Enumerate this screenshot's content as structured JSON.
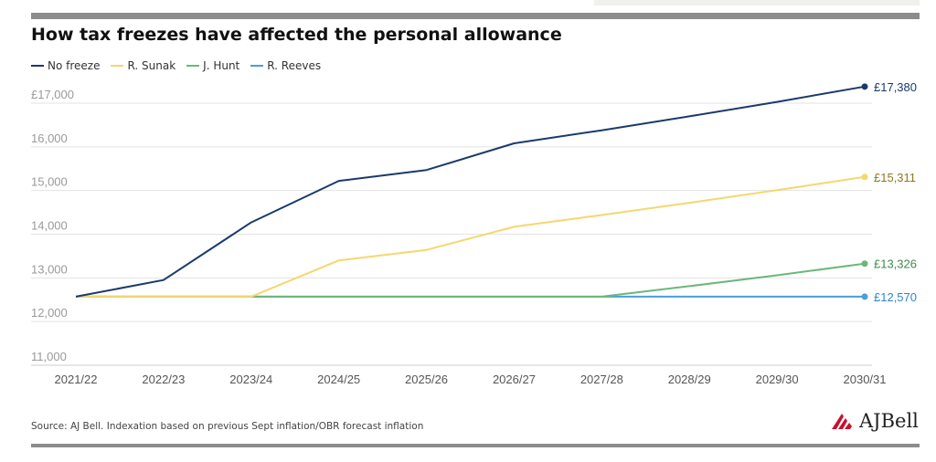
{
  "title": "How tax freezes have affected the personal allowance",
  "source": "Source: AJ Bell. Indexation based on previous Sept inflation/OBR forecast inflation",
  "logo": {
    "text": "AJBell",
    "color": "#c8102e"
  },
  "chart_data": {
    "type": "line",
    "title": "How tax freezes have affected the personal allowance",
    "xlabel": "",
    "ylabel": "",
    "categories": [
      "2021/22",
      "2022/23",
      "2023/24",
      "2024/25",
      "2025/26",
      "2026/27",
      "2027/28",
      "2028/29",
      "2029/30",
      "2030/31"
    ],
    "ylim": [
      11000,
      17000
    ],
    "yticks": [
      11000,
      12000,
      13000,
      14000,
      15000,
      16000,
      17000
    ],
    "ytick_labels": [
      "11,000",
      "12,000",
      "13,000",
      "14,000",
      "15,000",
      "16,000",
      "£17,000"
    ],
    "grid": true,
    "legend_position": "top-left",
    "series": [
      {
        "name": "No freeze",
        "color": "#1a3a6b",
        "values": [
          12570,
          12950,
          14270,
          15220,
          15470,
          16080,
          16380,
          16700,
          17030,
          17380
        ],
        "end_label": "£17,380"
      },
      {
        "name": "R. Sunak",
        "color": "#f5d76e",
        "values": [
          12570,
          12570,
          12570,
          13400,
          13640,
          14170,
          14440,
          14720,
          15010,
          15311
        ],
        "end_label": "£15,311"
      },
      {
        "name": "J. Hunt",
        "color": "#6cb77a",
        "values": [
          12570,
          12570,
          12570,
          12570,
          12570,
          12570,
          12570,
          12810,
          13060,
          13326
        ],
        "end_label": "£13,326"
      },
      {
        "name": "R. Reeves",
        "color": "#4a9fd8",
        "values": [
          12570,
          12570,
          12570,
          12570,
          12570,
          12570,
          12570,
          12570,
          12570,
          12570
        ],
        "end_label": "£12,570"
      }
    ],
    "end_label_colors": [
      "#1a3a6b",
      "#8a7a1c",
      "#3d8a4f",
      "#2e86c7"
    ]
  }
}
